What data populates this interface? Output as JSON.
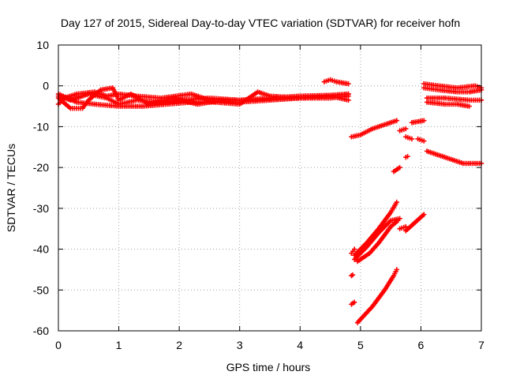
{
  "chart_data": {
    "type": "scatter",
    "title": "Day 127 of 2015, Sidereal Day-to-day VTEC variation (SDTVAR) for receiver hofn",
    "xlabel": "GPS time / hours",
    "ylabel": "SDTVAR / TECUs",
    "xlim": [
      0,
      7
    ],
    "ylim": [
      -60,
      10
    ],
    "xticks": [
      0,
      1,
      2,
      3,
      4,
      5,
      6,
      7
    ],
    "yticks": [
      10,
      0,
      -10,
      -20,
      -30,
      -40,
      -50,
      -60
    ],
    "xtick_labels": [
      "0",
      "1",
      "2",
      "3",
      "4",
      "5",
      "6",
      "7"
    ],
    "ytick_labels": [
      "10",
      "0",
      "-10",
      "-20",
      "-30",
      "-40",
      "-50",
      "-60"
    ],
    "grid": true,
    "marker": "+",
    "color": "#ff0000",
    "series": [
      {
        "segments": [
          [
            [
              0.0,
              -2.5
            ],
            [
              0.2,
              -3.5
            ],
            [
              0.5,
              -2.0
            ],
            [
              0.8,
              -3.0
            ],
            [
              1.0,
              -4.5
            ],
            [
              1.3,
              -3.5
            ],
            [
              1.6,
              -4.0
            ],
            [
              2.0,
              -3.5
            ],
            [
              2.5,
              -3.0
            ],
            [
              3.0,
              -3.5
            ],
            [
              3.5,
              -3.0
            ],
            [
              4.0,
              -2.5
            ],
            [
              4.5,
              -2.3
            ],
            [
              4.8,
              -2.0
            ]
          ],
          [
            [
              0.0,
              -4.5
            ],
            [
              0.1,
              -3.0
            ],
            [
              0.3,
              -2.0
            ],
            [
              0.6,
              -1.5
            ],
            [
              0.8,
              -2.5
            ],
            [
              1.0,
              -2.0
            ],
            [
              1.3,
              -2.5
            ],
            [
              1.7,
              -3.0
            ],
            [
              2.2,
              -2.0
            ],
            [
              2.6,
              -4.0
            ],
            [
              3.0,
              -4.5
            ],
            [
              3.3,
              -1.5
            ],
            [
              3.5,
              -2.5
            ],
            [
              4.0,
              -3.0
            ],
            [
              4.5,
              -2.5
            ],
            [
              4.8,
              -3.5
            ]
          ],
          [
            [
              0.0,
              -3.0
            ],
            [
              0.2,
              -5.5
            ],
            [
              0.4,
              -5.5
            ],
            [
              0.5,
              -3.5
            ],
            [
              0.7,
              -1.0
            ],
            [
              0.9,
              -0.5
            ],
            [
              1.0,
              -3.5
            ],
            [
              1.2,
              -2.0
            ],
            [
              1.5,
              -4.5
            ],
            [
              1.9,
              -3.0
            ],
            [
              2.3,
              -4.5
            ],
            [
              2.7,
              -3.5
            ],
            [
              3.0,
              -3.5
            ],
            [
              3.5,
              -3.3
            ],
            [
              4.0,
              -3.0
            ],
            [
              4.5,
              -3.0
            ],
            [
              4.8,
              -2.5
            ]
          ],
          [
            [
              0.0,
              -2.0
            ],
            [
              0.3,
              -4.0
            ],
            [
              0.6,
              -4.5
            ],
            [
              1.0,
              -5.0
            ],
            [
              1.4,
              -5.0
            ],
            [
              1.8,
              -4.5
            ],
            [
              2.2,
              -4.0
            ],
            [
              2.6,
              -4.0
            ],
            [
              3.0,
              -4.0
            ],
            [
              3.5,
              -3.5
            ],
            [
              4.0,
              -3.0
            ],
            [
              4.5,
              -2.5
            ],
            [
              4.8,
              -2.0
            ]
          ],
          [
            [
              4.4,
              1.0
            ],
            [
              4.5,
              1.5
            ],
            [
              4.6,
              1.0
            ],
            [
              4.8,
              0.5
            ]
          ],
          [
            [
              6.05,
              0.5
            ],
            [
              6.3,
              0.0
            ],
            [
              6.6,
              -0.5
            ],
            [
              6.9,
              0.0
            ],
            [
              7.0,
              -0.5
            ]
          ],
          [
            [
              6.05,
              -0.5
            ],
            [
              6.3,
              -1.0
            ],
            [
              6.6,
              -1.5
            ],
            [
              6.8,
              -1.5
            ],
            [
              7.0,
              -1.0
            ]
          ],
          [
            [
              6.1,
              -3.0
            ],
            [
              6.4,
              -3.0
            ],
            [
              6.8,
              -3.5
            ],
            [
              7.0,
              -3.5
            ]
          ],
          [
            [
              6.1,
              -4.0
            ],
            [
              6.4,
              -4.5
            ],
            [
              6.6,
              -4.5
            ],
            [
              6.8,
              -5.0
            ]
          ],
          [
            [
              6.1,
              -16.0
            ],
            [
              6.3,
              -17.0
            ],
            [
              6.5,
              -18.0
            ],
            [
              6.7,
              -19.0
            ],
            [
              7.0,
              -19.0
            ]
          ],
          [
            [
              4.85,
              -12.5
            ],
            [
              5.0,
              -12.0
            ],
            [
              5.2,
              -10.5
            ],
            [
              5.4,
              -9.5
            ],
            [
              5.6,
              -8.5
            ]
          ],
          [
            [
              5.85,
              -9.0
            ],
            [
              6.05,
              -8.5
            ]
          ],
          [
            [
              5.65,
              -11.0
            ],
            [
              5.75,
              -10.5
            ]
          ],
          [
            [
              5.75,
              -12.5
            ],
            [
              5.85,
              -13.0
            ]
          ],
          [
            [
              5.95,
              -13.0
            ],
            [
              6.05,
              -13.5
            ]
          ],
          [
            [
              5.75,
              -17.5
            ],
            [
              5.78,
              -17.3
            ]
          ],
          [
            [
              5.55,
              -21.0
            ],
            [
              5.65,
              -20.0
            ]
          ],
          [
            [
              4.9,
              -41.5
            ],
            [
              5.1,
              -38.5
            ],
            [
              5.3,
              -35.0
            ],
            [
              5.5,
              -31.0
            ],
            [
              5.6,
              -28.5
            ]
          ],
          [
            [
              4.9,
              -42.5
            ],
            [
              5.1,
              -39.5
            ],
            [
              5.3,
              -36.0
            ],
            [
              5.5,
              -33.0
            ],
            [
              5.65,
              -32.5
            ]
          ],
          [
            [
              4.95,
              -43.0
            ],
            [
              5.15,
              -41.0
            ],
            [
              5.3,
              -38.5
            ],
            [
              5.5,
              -34.5
            ],
            [
              5.62,
              -33.0
            ]
          ],
          [
            [
              4.85,
              -41.0
            ],
            [
              4.9,
              -40.0
            ]
          ],
          [
            [
              5.75,
              -35.5
            ],
            [
              5.9,
              -33.5
            ],
            [
              6.05,
              -31.5
            ]
          ],
          [
            [
              5.65,
              -35.0
            ],
            [
              5.75,
              -34.5
            ]
          ],
          [
            [
              4.85,
              -46.5
            ],
            [
              4.87,
              -46.3
            ]
          ],
          [
            [
              4.85,
              -53.5
            ],
            [
              4.9,
              -53.0
            ]
          ],
          [
            [
              4.95,
              -58.0
            ],
            [
              5.2,
              -54.0
            ],
            [
              5.4,
              -50.0
            ],
            [
              5.55,
              -46.5
            ],
            [
              5.6,
              -45.0
            ]
          ]
        ]
      }
    ]
  }
}
